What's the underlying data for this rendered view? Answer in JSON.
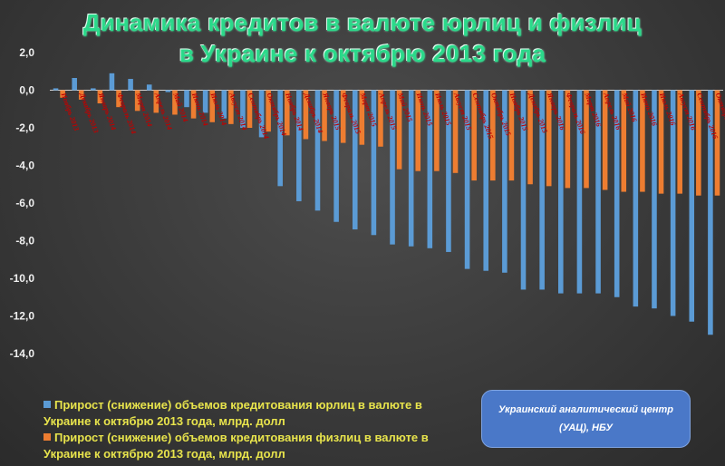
{
  "title": {
    "line1": "Динамика кредитов в валюте юрлиц и физлиц",
    "line2": "в Украине к октябрю 2013 года"
  },
  "legend": {
    "series1": "Прирост (снижение) объемов кредитования юрлиц в валюте в Украине к октябрю 2013 года, млрд. долл",
    "series2": "Прирост (снижение) объемов кредитования физлиц в валюте в Украине к октябрю 2013 года, млрд. долл"
  },
  "source": "Украинский аналитический центр (УАЦ), НБУ",
  "colors": {
    "series1": "#5b9bd5",
    "series2": "#ed7d31",
    "category_label": "#c00000",
    "axis_text": "#f0f0f0",
    "legend_text": "#e8e44c",
    "title": "#2bd98a"
  },
  "chart_data": {
    "type": "bar",
    "y_ticks": [
      "2,0",
      "0,0",
      "-2,0",
      "-4,0",
      "-6,0",
      "-8,0",
      "-10,0",
      "-12,0",
      "-14,0"
    ],
    "ylim": [
      -14,
      2
    ],
    "grid": false,
    "legend_position": "bottom-left",
    "categories": [
      "Ноябрь 2013",
      "Декабрь 2013",
      "Январь 2014",
      "Февраль 2014",
      "Март 2014",
      "Апрель 2014",
      "Май 2014",
      "Июнь 2014",
      "Июль 2014",
      "Август 2014",
      "Сентябрь 2014",
      "Октябрь 2014",
      "Ноябрь 2014",
      "Декабрь 2014",
      "Январь 2015",
      "Февраль 2015",
      "Март 2015",
      "Апрель 2015",
      "Май 2015",
      "Июнь 2015",
      "Июль 2015",
      "Август 2015",
      "Сентябрь 2015",
      "Октябрь 2015",
      "Ноябрь 2015",
      "Декабрь 2015",
      "Январь 2016",
      "Февраль 2016",
      "Март 2016",
      "Апрель 2016",
      "Май 2016",
      "Июнь 2016",
      "Июль 2016",
      "Август 2016",
      "Сентябрь 2016",
      "Октябрь 2016"
    ],
    "series": [
      {
        "name": "Прирост (снижение) объемов кредитования юрлиц в валюте в Украине к октябрю 2013 года, млрд. долл",
        "values": [
          0.1,
          0.65,
          0.1,
          0.9,
          0.6,
          0.3,
          -0.1,
          -0.9,
          -1.2,
          -1.5,
          -2.0,
          -2.5,
          -5.1,
          -5.9,
          -6.4,
          -7.0,
          -7.4,
          -7.7,
          -8.2,
          -8.3,
          -8.4,
          -8.6,
          -9.5,
          -9.6,
          -9.7,
          -10.6,
          -10.6,
          -10.8,
          -10.8,
          -10.8,
          -11.0,
          -11.5,
          -11.6,
          -12.0,
          -12.3,
          -13.0
        ]
      },
      {
        "name": "Прирост (снижение) объемов кредитования физлиц в валюте в Украине к октябрю 2013 года, млрд. долл",
        "values": [
          -0.4,
          -0.5,
          -0.7,
          -0.9,
          -1.1,
          -1.2,
          -1.3,
          -1.5,
          -1.7,
          -1.8,
          -2.0,
          -2.2,
          -2.4,
          -2.6,
          -2.7,
          -2.8,
          -2.9,
          -3.0,
          -4.2,
          -4.3,
          -4.3,
          -4.4,
          -4.8,
          -4.8,
          -4.8,
          -5.0,
          -5.1,
          -5.2,
          -5.2,
          -5.3,
          -5.4,
          -5.4,
          -5.5,
          -5.5,
          -5.6,
          -5.6
        ]
      }
    ]
  }
}
